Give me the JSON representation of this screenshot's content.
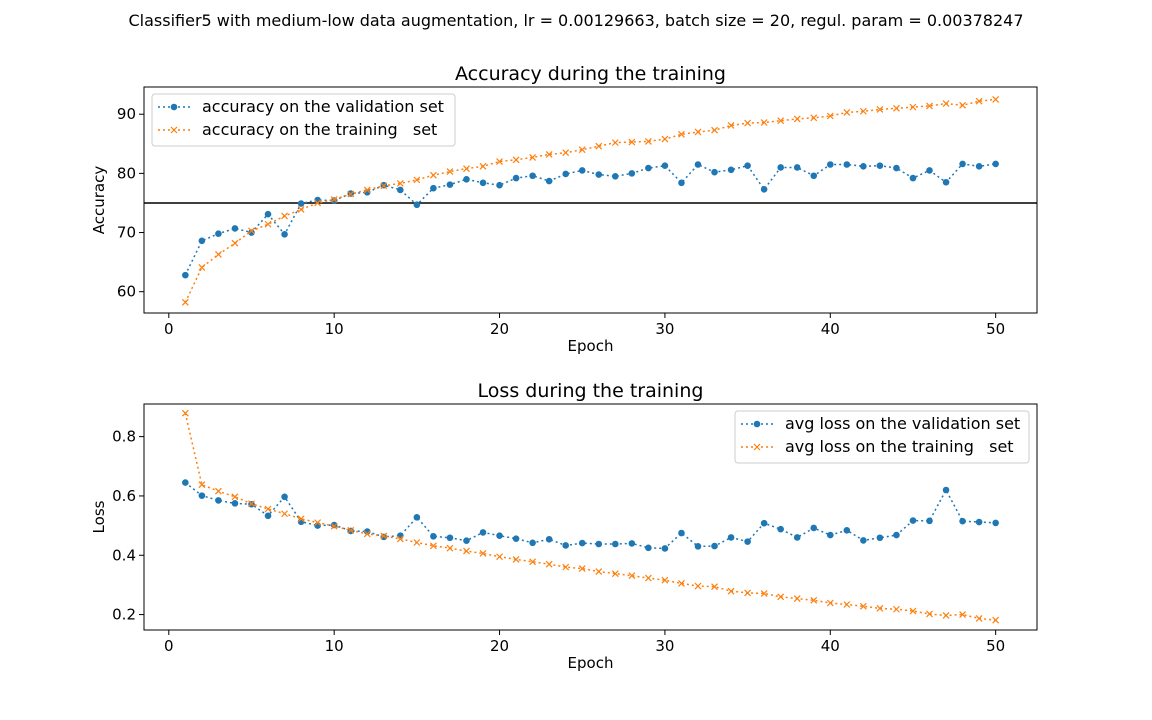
{
  "suptitle": "Classifier5 with medium-low data augmentation, lr = 0.00129663, batch size = 20, regul. param = 0.00378247",
  "chart_data": [
    {
      "type": "line",
      "title": "Accuracy during the training",
      "xlabel": "Epoch",
      "ylabel": "Accuracy",
      "xlim": [
        -1.5,
        52.5
      ],
      "ylim": [
        56.4,
        94.6
      ],
      "xticks": [
        0,
        10,
        20,
        30,
        40,
        50
      ],
      "yticks": [
        60,
        70,
        80,
        90
      ],
      "grid": false,
      "legend": "upper left",
      "hline": 75,
      "x": [
        1,
        2,
        3,
        4,
        5,
        6,
        7,
        8,
        9,
        10,
        11,
        12,
        13,
        14,
        15,
        16,
        17,
        18,
        19,
        20,
        21,
        22,
        23,
        24,
        25,
        26,
        27,
        28,
        29,
        30,
        31,
        32,
        33,
        34,
        35,
        36,
        37,
        38,
        39,
        40,
        41,
        42,
        43,
        44,
        45,
        46,
        47,
        48,
        49,
        50
      ],
      "series": [
        {
          "name": "accuracy on the validation set",
          "color": "#1f77b4",
          "marker": "circle",
          "values": [
            62.8,
            68.6,
            69.8,
            70.7,
            70.0,
            73.1,
            69.7,
            74.9,
            75.5,
            75.4,
            76.6,
            76.8,
            78.0,
            77.2,
            74.7,
            77.5,
            78.1,
            79.0,
            78.4,
            78.0,
            79.2,
            79.6,
            78.7,
            79.9,
            80.5,
            79.8,
            79.5,
            80.0,
            80.9,
            81.3,
            78.4,
            81.5,
            80.2,
            80.6,
            81.3,
            77.3,
            81.0,
            81.0,
            79.6,
            81.5,
            81.5,
            81.2,
            81.3,
            80.9,
            79.2,
            80.5,
            78.5,
            81.6,
            81.2,
            81.6
          ]
        },
        {
          "name": "accuracy on the training   set",
          "color": "#ff7f0e",
          "marker": "x",
          "values": [
            58.2,
            64.1,
            66.3,
            68.2,
            70.3,
            71.4,
            72.8,
            73.9,
            75.0,
            75.6,
            76.5,
            77.2,
            77.9,
            78.3,
            78.9,
            79.7,
            80.3,
            80.8,
            81.2,
            82.0,
            82.3,
            82.7,
            83.2,
            83.5,
            84.0,
            84.6,
            85.2,
            85.3,
            85.4,
            85.8,
            86.6,
            87.0,
            87.3,
            88.1,
            88.5,
            88.6,
            88.9,
            89.2,
            89.4,
            89.7,
            90.3,
            90.5,
            90.8,
            91.0,
            91.2,
            91.4,
            91.8,
            91.5,
            92.2,
            92.5
          ]
        }
      ]
    },
    {
      "type": "line",
      "title": "Loss during the training",
      "xlabel": "Epoch",
      "ylabel": "Loss",
      "xlim": [
        -1.5,
        52.5
      ],
      "ylim": [
        0.148,
        0.91
      ],
      "xticks": [
        0,
        10,
        20,
        30,
        40,
        50
      ],
      "yticks": [
        0.2,
        0.4,
        0.6,
        0.8
      ],
      "grid": false,
      "legend": "upper right",
      "x": [
        1,
        2,
        3,
        4,
        5,
        6,
        7,
        8,
        9,
        10,
        11,
        12,
        13,
        14,
        15,
        16,
        17,
        18,
        19,
        20,
        21,
        22,
        23,
        24,
        25,
        26,
        27,
        28,
        29,
        30,
        31,
        32,
        33,
        34,
        35,
        36,
        37,
        38,
        39,
        40,
        41,
        42,
        43,
        44,
        45,
        46,
        47,
        48,
        49,
        50
      ],
      "series": [
        {
          "name": "avg loss on the validation set",
          "color": "#1f77b4",
          "marker": "circle",
          "values": [
            0.645,
            0.601,
            0.585,
            0.575,
            0.572,
            0.533,
            0.597,
            0.513,
            0.5,
            0.502,
            0.482,
            0.48,
            0.462,
            0.466,
            0.528,
            0.464,
            0.459,
            0.449,
            0.477,
            0.466,
            0.456,
            0.442,
            0.454,
            0.433,
            0.441,
            0.438,
            0.438,
            0.44,
            0.425,
            0.423,
            0.475,
            0.43,
            0.431,
            0.46,
            0.446,
            0.508,
            0.488,
            0.46,
            0.492,
            0.468,
            0.484,
            0.45,
            0.459,
            0.468,
            0.517,
            0.516,
            0.62,
            0.515,
            0.512,
            0.509
          ]
        },
        {
          "name": "avg loss on the training   set",
          "color": "#ff7f0e",
          "marker": "x",
          "values": [
            0.879,
            0.638,
            0.616,
            0.597,
            0.574,
            0.556,
            0.54,
            0.523,
            0.51,
            0.498,
            0.484,
            0.472,
            0.465,
            0.455,
            0.443,
            0.432,
            0.424,
            0.414,
            0.406,
            0.395,
            0.386,
            0.378,
            0.37,
            0.36,
            0.355,
            0.345,
            0.338,
            0.331,
            0.323,
            0.316,
            0.305,
            0.296,
            0.294,
            0.279,
            0.273,
            0.271,
            0.26,
            0.254,
            0.248,
            0.239,
            0.234,
            0.228,
            0.221,
            0.218,
            0.212,
            0.202,
            0.197,
            0.2,
            0.187,
            0.181
          ]
        }
      ]
    }
  ]
}
